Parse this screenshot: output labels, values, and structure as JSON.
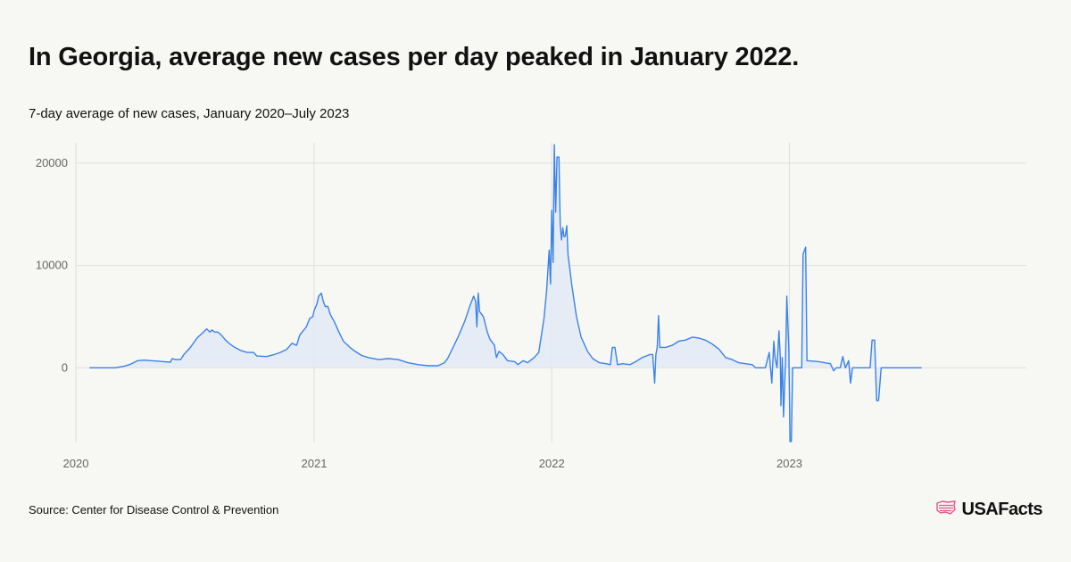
{
  "title": "In Georgia, average new cases per day peaked in January 2022.",
  "subtitle": "7-day average of new cases, January 2020–July 2023",
  "source": "Source: Center for Disease Control & Prevention",
  "brand": {
    "name": "USAFacts",
    "icon": "us-flag-map-icon",
    "icon_color": "#e2548a"
  },
  "colors": {
    "line": "#3b82e8",
    "area": "#e3eaf5",
    "grid": "#dedede",
    "axis": "#777777"
  },
  "chart_data": {
    "type": "area",
    "title": "In Georgia, average new cases per day peaked in January 2022.",
    "subtitle": "7-day average of new cases, January 2020–July 2023",
    "xlabel": "",
    "ylabel": "",
    "x_tick_labels": [
      "2020",
      "2021",
      "2022",
      "2023"
    ],
    "y_tick_labels": [
      "20000",
      "10000",
      "0"
    ],
    "y_ticks": [
      0,
      10000,
      20000
    ],
    "ylim": [
      -7300,
      22000
    ],
    "xlim": [
      "2020-01-01",
      "2023-12-31"
    ],
    "grid": true,
    "series": [
      {
        "values": [
          [
            "2020-01-22",
            0
          ],
          [
            "2020-03-01",
            0
          ],
          [
            "2020-03-15",
            150
          ],
          [
            "2020-03-25",
            350
          ],
          [
            "2020-04-05",
            700
          ],
          [
            "2020-04-15",
            750
          ],
          [
            "2020-04-25",
            700
          ],
          [
            "2020-05-05",
            650
          ],
          [
            "2020-05-15",
            600
          ],
          [
            "2020-05-25",
            550
          ],
          [
            "2020-05-28",
            900
          ],
          [
            "2020-06-02",
            800
          ],
          [
            "2020-06-10",
            800
          ],
          [
            "2020-06-15",
            1300
          ],
          [
            "2020-06-25",
            2000
          ],
          [
            "2020-07-05",
            2900
          ],
          [
            "2020-07-15",
            3500
          ],
          [
            "2020-07-20",
            3800
          ],
          [
            "2020-07-25",
            3500
          ],
          [
            "2020-07-28",
            3700
          ],
          [
            "2020-08-01",
            3500
          ],
          [
            "2020-08-06",
            3500
          ],
          [
            "2020-08-10",
            3300
          ],
          [
            "2020-08-18",
            2700
          ],
          [
            "2020-08-25",
            2300
          ],
          [
            "2020-09-01",
            2000
          ],
          [
            "2020-09-10",
            1700
          ],
          [
            "2020-09-20",
            1500
          ],
          [
            "2020-09-30",
            1500
          ],
          [
            "2020-10-05",
            1150
          ],
          [
            "2020-10-20",
            1100
          ],
          [
            "2020-11-01",
            1300
          ],
          [
            "2020-11-10",
            1500
          ],
          [
            "2020-11-20",
            1800
          ],
          [
            "2020-11-28",
            2400
          ],
          [
            "2020-12-05",
            2200
          ],
          [
            "2020-12-10",
            3200
          ],
          [
            "2020-12-20",
            4000
          ],
          [
            "2020-12-25",
            4800
          ],
          [
            "2020-12-30",
            5000
          ],
          [
            "2021-01-01",
            5600
          ],
          [
            "2021-01-05",
            6200
          ],
          [
            "2021-01-08",
            7000
          ],
          [
            "2021-01-12",
            7300
          ],
          [
            "2021-01-15",
            6500
          ],
          [
            "2021-01-18",
            6000
          ],
          [
            "2021-01-22",
            6000
          ],
          [
            "2021-01-26",
            5200
          ],
          [
            "2021-02-01",
            4500
          ],
          [
            "2021-02-08",
            3500
          ],
          [
            "2021-02-15",
            2600
          ],
          [
            "2021-02-25",
            2000
          ],
          [
            "2021-03-05",
            1600
          ],
          [
            "2021-03-15",
            1200
          ],
          [
            "2021-03-25",
            1000
          ],
          [
            "2021-04-10",
            800
          ],
          [
            "2021-04-25",
            900
          ],
          [
            "2021-05-10",
            800
          ],
          [
            "2021-05-25",
            500
          ],
          [
            "2021-06-10",
            300
          ],
          [
            "2021-06-25",
            200
          ],
          [
            "2021-07-10",
            200
          ],
          [
            "2021-07-20",
            500
          ],
          [
            "2021-07-25",
            900
          ],
          [
            "2021-08-01",
            1800
          ],
          [
            "2021-08-10",
            3000
          ],
          [
            "2021-08-20",
            4500
          ],
          [
            "2021-08-28",
            6000
          ],
          [
            "2021-09-03",
            7000
          ],
          [
            "2021-09-06",
            6500
          ],
          [
            "2021-09-08",
            4000
          ],
          [
            "2021-09-10",
            7300
          ],
          [
            "2021-09-12",
            5500
          ],
          [
            "2021-09-18",
            5000
          ],
          [
            "2021-09-24",
            3500
          ],
          [
            "2021-09-28",
            2800
          ],
          [
            "2021-10-05",
            2200
          ],
          [
            "2021-10-08",
            1000
          ],
          [
            "2021-10-12",
            1600
          ],
          [
            "2021-10-18",
            1300
          ],
          [
            "2021-10-25",
            700
          ],
          [
            "2021-11-05",
            600
          ],
          [
            "2021-11-10",
            300
          ],
          [
            "2021-11-18",
            700
          ],
          [
            "2021-11-25",
            500
          ],
          [
            "2021-12-05",
            1000
          ],
          [
            "2021-12-12",
            1500
          ],
          [
            "2021-12-20",
            4800
          ],
          [
            "2021-12-24",
            7500
          ],
          [
            "2021-12-28",
            11500
          ],
          [
            "2021-12-30",
            8200
          ],
          [
            "2022-01-01",
            15400
          ],
          [
            "2022-01-03",
            10300
          ],
          [
            "2022-01-05",
            21800
          ],
          [
            "2022-01-07",
            15200
          ],
          [
            "2022-01-09",
            20600
          ],
          [
            "2022-01-12",
            20600
          ],
          [
            "2022-01-14",
            14000
          ],
          [
            "2022-01-16",
            12500
          ],
          [
            "2022-01-18",
            13700
          ],
          [
            "2022-01-20",
            12800
          ],
          [
            "2022-01-22",
            12900
          ],
          [
            "2022-01-24",
            13900
          ],
          [
            "2022-01-26",
            11000
          ],
          [
            "2022-02-01",
            8000
          ],
          [
            "2022-02-08",
            5000
          ],
          [
            "2022-02-15",
            3000
          ],
          [
            "2022-02-25",
            1600
          ],
          [
            "2022-03-05",
            900
          ],
          [
            "2022-03-15",
            500
          ],
          [
            "2022-03-25",
            400
          ],
          [
            "2022-04-01",
            300
          ],
          [
            "2022-04-04",
            2000
          ],
          [
            "2022-04-08",
            2000
          ],
          [
            "2022-04-12",
            300
          ],
          [
            "2022-04-20",
            400
          ],
          [
            "2022-05-01",
            300
          ],
          [
            "2022-05-10",
            600
          ],
          [
            "2022-05-20",
            1000
          ],
          [
            "2022-06-01",
            1300
          ],
          [
            "2022-06-05",
            1300
          ],
          [
            "2022-06-08",
            -1500
          ],
          [
            "2022-06-10",
            1300
          ],
          [
            "2022-06-12",
            2000
          ],
          [
            "2022-06-14",
            5100
          ],
          [
            "2022-06-16",
            2000
          ],
          [
            "2022-06-25",
            2000
          ],
          [
            "2022-07-05",
            2200
          ],
          [
            "2022-07-15",
            2600
          ],
          [
            "2022-07-25",
            2700
          ],
          [
            "2022-08-05",
            3000
          ],
          [
            "2022-08-15",
            2900
          ],
          [
            "2022-08-25",
            2700
          ],
          [
            "2022-09-05",
            2300
          ],
          [
            "2022-09-15",
            1800
          ],
          [
            "2022-09-25",
            1000
          ],
          [
            "2022-10-05",
            800
          ],
          [
            "2022-10-15",
            500
          ],
          [
            "2022-10-25",
            400
          ],
          [
            "2022-11-05",
            300
          ],
          [
            "2022-11-10",
            0
          ],
          [
            "2022-11-25",
            0
          ],
          [
            "2022-12-01",
            1500
          ],
          [
            "2022-12-03",
            0
          ],
          [
            "2022-12-05",
            -1500
          ],
          [
            "2022-12-08",
            2600
          ],
          [
            "2022-12-10",
            1000
          ],
          [
            "2022-12-13",
            0
          ],
          [
            "2022-12-16",
            3600
          ],
          [
            "2022-12-18",
            1000
          ],
          [
            "2022-12-19",
            -3700
          ],
          [
            "2022-12-21",
            1000
          ],
          [
            "2022-12-23",
            -4800
          ],
          [
            "2022-12-26",
            500
          ],
          [
            "2022-12-28",
            7000
          ],
          [
            "2022-12-31",
            2000
          ],
          [
            "2023-01-02",
            -7200
          ],
          [
            "2023-01-04",
            -7200
          ],
          [
            "2023-01-06",
            0
          ],
          [
            "2023-01-20",
            0
          ],
          [
            "2023-01-22",
            11100
          ],
          [
            "2023-01-26",
            11800
          ],
          [
            "2023-01-28",
            700
          ],
          [
            "2023-02-15",
            600
          ],
          [
            "2023-03-05",
            400
          ],
          [
            "2023-03-10",
            -300
          ],
          [
            "2023-03-14",
            0
          ],
          [
            "2023-03-20",
            0
          ],
          [
            "2023-03-24",
            1100
          ],
          [
            "2023-03-28",
            0
          ],
          [
            "2023-04-02",
            700
          ],
          [
            "2023-04-05",
            -1500
          ],
          [
            "2023-04-08",
            0
          ],
          [
            "2023-05-05",
            0
          ],
          [
            "2023-05-08",
            2700
          ],
          [
            "2023-05-12",
            2700
          ],
          [
            "2023-05-15",
            -3200
          ],
          [
            "2023-05-18",
            -3200
          ],
          [
            "2023-05-22",
            0
          ],
          [
            "2023-07-23",
            0
          ]
        ]
      }
    ]
  }
}
